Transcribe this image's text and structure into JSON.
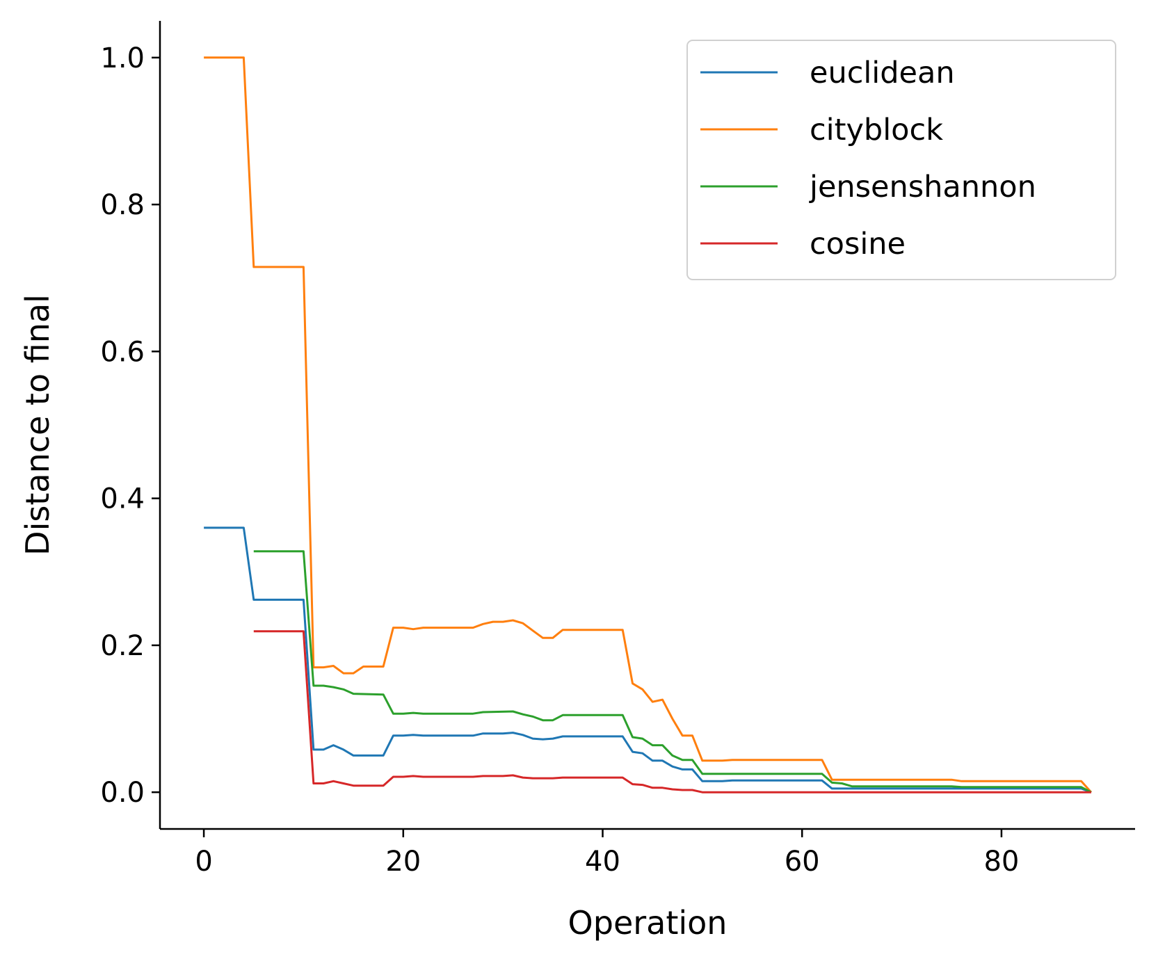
{
  "chart_data": {
    "type": "line",
    "title": "",
    "xlabel": "Operation",
    "ylabel": "Distance to final",
    "xlim": [
      -4.4,
      93.4
    ],
    "ylim": [
      -0.05,
      1.05
    ],
    "xticks": [
      0,
      20,
      40,
      60,
      80
    ],
    "xtick_labels": [
      "0",
      "20",
      "40",
      "60",
      "80"
    ],
    "yticks": [
      0.0,
      0.2,
      0.4,
      0.6,
      0.8,
      1.0
    ],
    "ytick_labels": [
      "0.0",
      "0.2",
      "0.4",
      "0.6",
      "0.8",
      "1.0"
    ],
    "grid": false,
    "legend_position": "top-right",
    "series": [
      {
        "name": "euclidean",
        "color": "#1f77b4",
        "points": [
          [
            0,
            0.36
          ],
          [
            4,
            0.36
          ],
          [
            5,
            0.262
          ],
          [
            10,
            0.262
          ],
          [
            11,
            0.058
          ],
          [
            12,
            0.058
          ],
          [
            13,
            0.064
          ],
          [
            14,
            0.058
          ],
          [
            15,
            0.05
          ],
          [
            18,
            0.05
          ],
          [
            19,
            0.077
          ],
          [
            20,
            0.077
          ],
          [
            21,
            0.078
          ],
          [
            22,
            0.077
          ],
          [
            27,
            0.077
          ],
          [
            28,
            0.08
          ],
          [
            30,
            0.08
          ],
          [
            31,
            0.081
          ],
          [
            32,
            0.078
          ],
          [
            33,
            0.073
          ],
          [
            34,
            0.072
          ],
          [
            35,
            0.073
          ],
          [
            36,
            0.076
          ],
          [
            42,
            0.076
          ],
          [
            43,
            0.055
          ],
          [
            44,
            0.053
          ],
          [
            45,
            0.043
          ],
          [
            46,
            0.043
          ],
          [
            47,
            0.035
          ],
          [
            48,
            0.031
          ],
          [
            49,
            0.031
          ],
          [
            50,
            0.015
          ],
          [
            52,
            0.015
          ],
          [
            53,
            0.016
          ],
          [
            62,
            0.016
          ],
          [
            63,
            0.005
          ],
          [
            88,
            0.005
          ],
          [
            89,
            0.0
          ]
        ]
      },
      {
        "name": "cityblock",
        "color": "#ff7f0e",
        "points": [
          [
            0,
            1.0
          ],
          [
            4,
            1.0
          ],
          [
            5,
            0.715
          ],
          [
            10,
            0.715
          ],
          [
            11,
            0.17
          ],
          [
            12,
            0.17
          ],
          [
            13,
            0.172
          ],
          [
            14,
            0.162
          ],
          [
            15,
            0.162
          ],
          [
            16,
            0.171
          ],
          [
            18,
            0.171
          ],
          [
            19,
            0.224
          ],
          [
            20,
            0.224
          ],
          [
            21,
            0.222
          ],
          [
            22,
            0.224
          ],
          [
            27,
            0.224
          ],
          [
            28,
            0.229
          ],
          [
            29,
            0.232
          ],
          [
            30,
            0.232
          ],
          [
            31,
            0.234
          ],
          [
            32,
            0.23
          ],
          [
            33,
            0.22
          ],
          [
            34,
            0.21
          ],
          [
            35,
            0.21
          ],
          [
            36,
            0.221
          ],
          [
            42,
            0.221
          ],
          [
            43,
            0.148
          ],
          [
            44,
            0.14
          ],
          [
            45,
            0.123
          ],
          [
            46,
            0.126
          ],
          [
            47,
            0.1
          ],
          [
            48,
            0.077
          ],
          [
            49,
            0.077
          ],
          [
            50,
            0.043
          ],
          [
            52,
            0.043
          ],
          [
            53,
            0.044
          ],
          [
            62,
            0.044
          ],
          [
            63,
            0.017
          ],
          [
            75,
            0.017
          ],
          [
            76,
            0.015
          ],
          [
            88,
            0.015
          ],
          [
            89,
            0.0
          ]
        ]
      },
      {
        "name": "jensenshannon",
        "color": "#2ca02c",
        "points": [
          [
            5,
            0.328
          ],
          [
            10,
            0.328
          ],
          [
            11,
            0.145
          ],
          [
            12,
            0.145
          ],
          [
            13,
            0.143
          ],
          [
            14,
            0.14
          ],
          [
            15,
            0.134
          ],
          [
            18,
            0.133
          ],
          [
            19,
            0.107
          ],
          [
            20,
            0.107
          ],
          [
            21,
            0.108
          ],
          [
            22,
            0.107
          ],
          [
            27,
            0.107
          ],
          [
            28,
            0.109
          ],
          [
            31,
            0.11
          ],
          [
            32,
            0.106
          ],
          [
            33,
            0.103
          ],
          [
            34,
            0.098
          ],
          [
            35,
            0.098
          ],
          [
            36,
            0.105
          ],
          [
            42,
            0.105
          ],
          [
            43,
            0.075
          ],
          [
            44,
            0.073
          ],
          [
            45,
            0.064
          ],
          [
            46,
            0.064
          ],
          [
            47,
            0.05
          ],
          [
            48,
            0.044
          ],
          [
            49,
            0.044
          ],
          [
            50,
            0.025
          ],
          [
            62,
            0.025
          ],
          [
            63,
            0.013
          ],
          [
            64,
            0.012
          ],
          [
            65,
            0.008
          ],
          [
            75,
            0.008
          ],
          [
            76,
            0.007
          ],
          [
            88,
            0.007
          ],
          [
            89,
            0.0
          ]
        ]
      },
      {
        "name": "cosine",
        "color": "#d62728",
        "points": [
          [
            5,
            0.219
          ],
          [
            10,
            0.219
          ],
          [
            11,
            0.012
          ],
          [
            12,
            0.012
          ],
          [
            13,
            0.015
          ],
          [
            14,
            0.012
          ],
          [
            15,
            0.009
          ],
          [
            18,
            0.009
          ],
          [
            19,
            0.021
          ],
          [
            20,
            0.021
          ],
          [
            21,
            0.022
          ],
          [
            22,
            0.021
          ],
          [
            27,
            0.021
          ],
          [
            28,
            0.022
          ],
          [
            30,
            0.022
          ],
          [
            31,
            0.023
          ],
          [
            32,
            0.02
          ],
          [
            33,
            0.019
          ],
          [
            35,
            0.019
          ],
          [
            36,
            0.02
          ],
          [
            42,
            0.02
          ],
          [
            43,
            0.011
          ],
          [
            44,
            0.01
          ],
          [
            45,
            0.006
          ],
          [
            46,
            0.006
          ],
          [
            47,
            0.004
          ],
          [
            48,
            0.003
          ],
          [
            49,
            0.003
          ],
          [
            50,
            0.0
          ],
          [
            89,
            0.0
          ]
        ]
      }
    ]
  }
}
